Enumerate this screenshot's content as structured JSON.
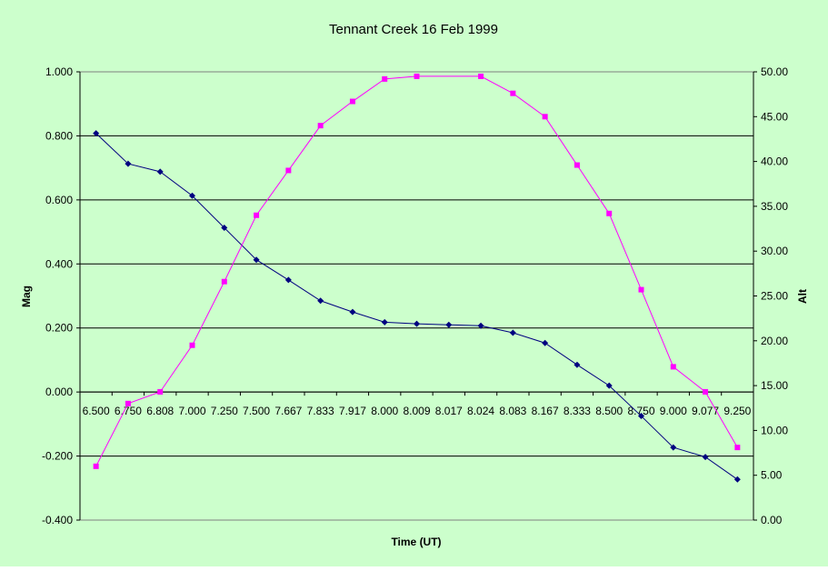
{
  "colors": {
    "background": "#ccffcc",
    "plot_background": "#ccffcc",
    "gridline": "#000000",
    "mag_series": "#000080",
    "alt_series": "#ff00ff"
  },
  "chart_data": {
    "type": "line",
    "title": "Tennant Creek 16 Feb 1999",
    "xlabel": "Time (UT)",
    "ylabel": "Mag",
    "y2label": "Alt",
    "categories": [
      "6.500",
      "6.750",
      "6.808",
      "7.000",
      "7.250",
      "7.500",
      "7.667",
      "7.833",
      "7.917",
      "8.000",
      "8.009",
      "8.017",
      "8.024",
      "8.083",
      "8.167",
      "8.333",
      "8.500",
      "8.750",
      "9.000",
      "9.077",
      "9.250"
    ],
    "ylim": [
      -0.4,
      1.0
    ],
    "y_ticks": [
      "-0.400",
      "-0.200",
      "0.000",
      "0.200",
      "0.400",
      "0.600",
      "0.800",
      "1.000"
    ],
    "y2lim": [
      0,
      50
    ],
    "y2_ticks": [
      "0.00",
      "5.00",
      "10.00",
      "15.00",
      "20.00",
      "25.00",
      "30.00",
      "35.00",
      "40.00",
      "45.00",
      "50.00"
    ],
    "grid": "horizontal major gridlines",
    "legend": "none",
    "series": [
      {
        "axis": "left",
        "marker": "diamond",
        "values": [
          0.808,
          0.713,
          0.688,
          0.613,
          0.513,
          0.413,
          0.35,
          0.285,
          0.25,
          0.218,
          0.213,
          0.21,
          0.207,
          0.185,
          0.153,
          0.085,
          0.02,
          -0.075,
          -0.173,
          -0.203,
          -0.273
        ]
      },
      {
        "axis": "right",
        "marker": "square",
        "values": [
          6.0,
          13.0,
          14.3,
          19.5,
          26.6,
          34.0,
          39.0,
          44.0,
          46.7,
          49.2,
          49.5,
          null,
          49.5,
          47.6,
          45.0,
          39.6,
          34.2,
          25.7,
          17.1,
          14.3,
          8.1
        ]
      }
    ]
  }
}
